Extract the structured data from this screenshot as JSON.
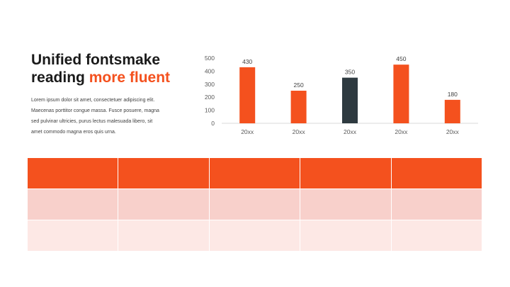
{
  "slide": {
    "title_line1": "Unified fontsmake",
    "title_line2_plain": "reading ",
    "title_line2_accent": "more fluent",
    "body_lines": [
      "Lorem ipsum dolor sit amet, consectetuer adipiscing elit.",
      "Maecenas porttitor congue massa. Fusce posuere, magna",
      "sed pulvinar ultricies, purus lectus malesuada libero, sit",
      "amet commodo magna eros quis urna."
    ]
  },
  "colors": {
    "accent": "#f4511e",
    "highlight_bar": "#2e3a40",
    "table_header": "#f4511e",
    "table_row_1": "#f8d0cb",
    "table_row_2": "#fde8e5",
    "axis_text": "#595959",
    "gridline": "#d9d9d9"
  },
  "chart_data": {
    "type": "bar",
    "categories": [
      "20xx",
      "20xx",
      "20xx",
      "20xx",
      "20xx"
    ],
    "values": [
      430,
      250,
      350,
      450,
      180
    ],
    "data_labels": [
      "430",
      "250",
      "350",
      "450",
      "180"
    ],
    "highlight_index": 2,
    "yticks": [
      "0",
      "100",
      "200",
      "300",
      "400",
      "500"
    ],
    "ylim": [
      0,
      500
    ],
    "title": "",
    "xlabel": "",
    "ylabel": "",
    "grid": false,
    "legend": "none"
  },
  "table": {
    "columns": 5,
    "rows": [
      {
        "kind": "head",
        "cells": [
          "",
          "",
          "",
          "",
          ""
        ]
      },
      {
        "kind": "row1",
        "cells": [
          "",
          "",
          "",
          "",
          ""
        ]
      },
      {
        "kind": "row2",
        "cells": [
          "",
          "",
          "",
          "",
          ""
        ]
      }
    ]
  }
}
